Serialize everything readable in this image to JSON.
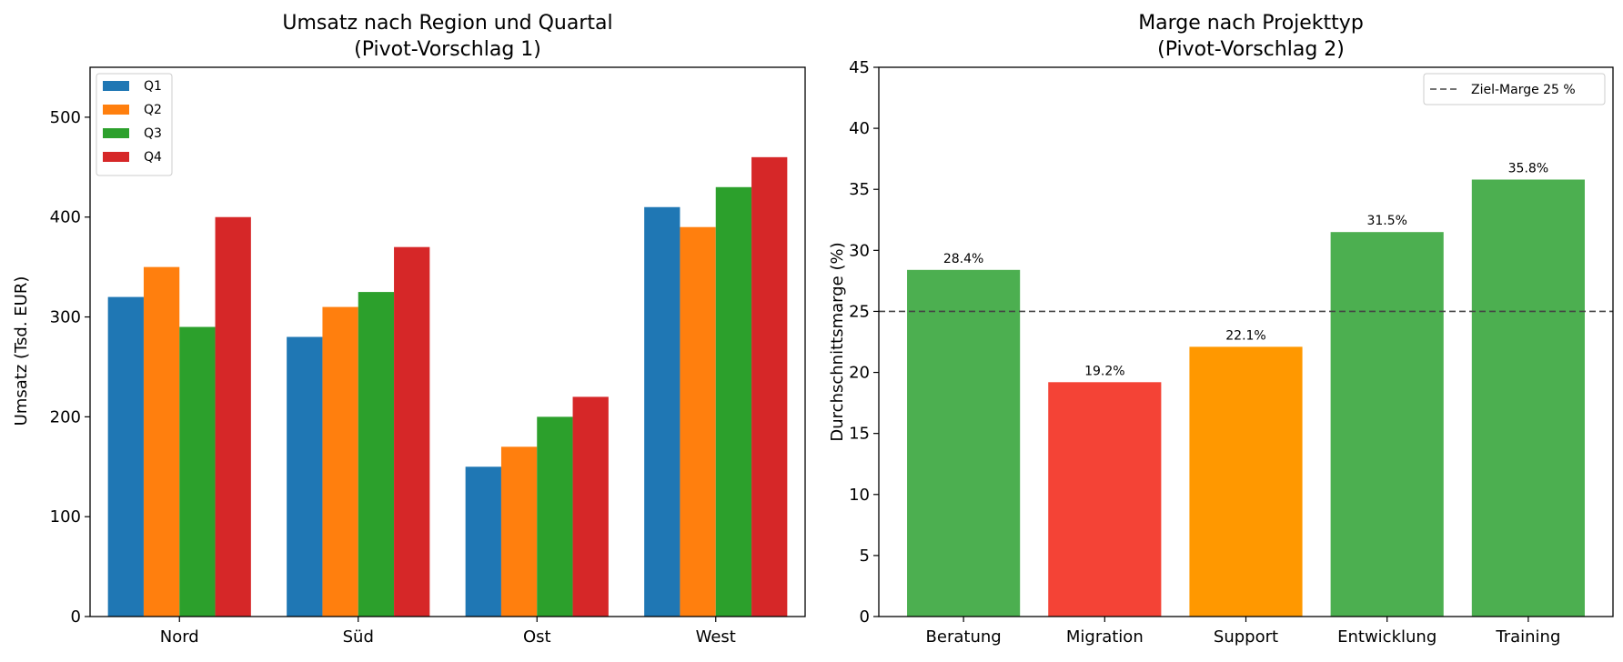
{
  "chart_data": [
    {
      "type": "bar",
      "title": "Umsatz nach Region und Quartal",
      "subtitle": "(Pivot-Vorschlag 1)",
      "xlabel": "",
      "ylabel": "Umsatz (Tsd. EUR)",
      "ylim": [
        0,
        550
      ],
      "yticks": [
        "0",
        "100",
        "200",
        "300",
        "400",
        "500"
      ],
      "categories": [
        "Nord",
        "Süd",
        "Ost",
        "West"
      ],
      "series": [
        {
          "name": "Q1",
          "color": "#1f77b4",
          "values": [
            320,
            280,
            150,
            410
          ]
        },
        {
          "name": "Q2",
          "color": "#ff7f0e",
          "values": [
            350,
            310,
            170,
            390
          ]
        },
        {
          "name": "Q3",
          "color": "#2ca02c",
          "values": [
            290,
            325,
            200,
            430
          ]
        },
        {
          "name": "Q4",
          "color": "#d62728",
          "values": [
            400,
            370,
            220,
            460
          ]
        }
      ],
      "grid": false,
      "legend_position": "top-left"
    },
    {
      "type": "bar",
      "title": "Marge nach Projekttyp",
      "subtitle": "(Pivot-Vorschlag 2)",
      "xlabel": "",
      "ylabel": "Durchschnittsmarge (%)",
      "ylim": [
        0,
        45
      ],
      "yticks": [
        "0",
        "5",
        "10",
        "15",
        "20",
        "25",
        "30",
        "35",
        "40",
        "45"
      ],
      "categories": [
        "Beratung",
        "Migration",
        "Support",
        "Entwicklung",
        "Training"
      ],
      "values": [
        28.4,
        19.2,
        22.1,
        31.5,
        35.8
      ],
      "value_labels": [
        "28.4%",
        "19.2%",
        "22.1%",
        "31.5%",
        "35.8%"
      ],
      "colors": [
        "#4caf50",
        "#f44336",
        "#ff9800",
        "#4caf50",
        "#4caf50"
      ],
      "reference_line": {
        "value": 25,
        "label": "Ziel-Marge 25 %",
        "color": "#444444",
        "style": "dashed"
      },
      "grid": false,
      "legend_position": "top-right"
    }
  ]
}
